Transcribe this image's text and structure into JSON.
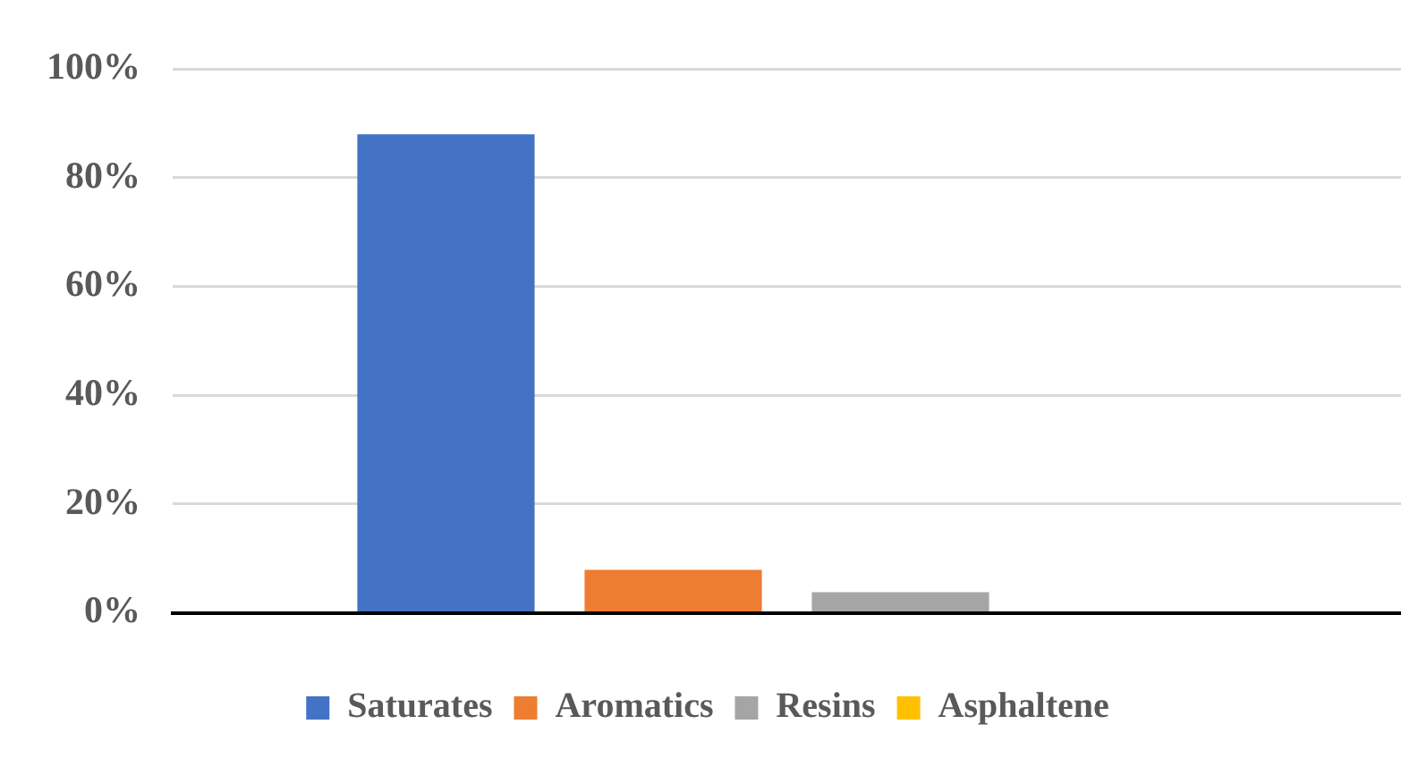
{
  "chart_data": {
    "type": "bar",
    "categories": [
      null
    ],
    "series": [
      {
        "name": "Saturates",
        "color": "#4472c4",
        "values": [
          88
        ]
      },
      {
        "name": "Aromatics",
        "color": "#ed7d31",
        "values": [
          7.9
        ]
      },
      {
        "name": "Resins",
        "color": "#a5a5a5",
        "values": [
          3.8
        ]
      },
      {
        "name": "Asphaltene",
        "color": "#ffc000",
        "values": [
          0
        ]
      }
    ],
    "ylim": [
      0,
      100
    ],
    "yticks": [
      {
        "value": 0,
        "label": "0%"
      },
      {
        "value": 20,
        "label": "20%"
      },
      {
        "value": 40,
        "label": "40%"
      },
      {
        "value": 60,
        "label": "60%"
      },
      {
        "value": 80,
        "label": "80%"
      },
      {
        "value": 100,
        "label": "100%"
      }
    ],
    "grid": "y",
    "legend": "bottom"
  }
}
